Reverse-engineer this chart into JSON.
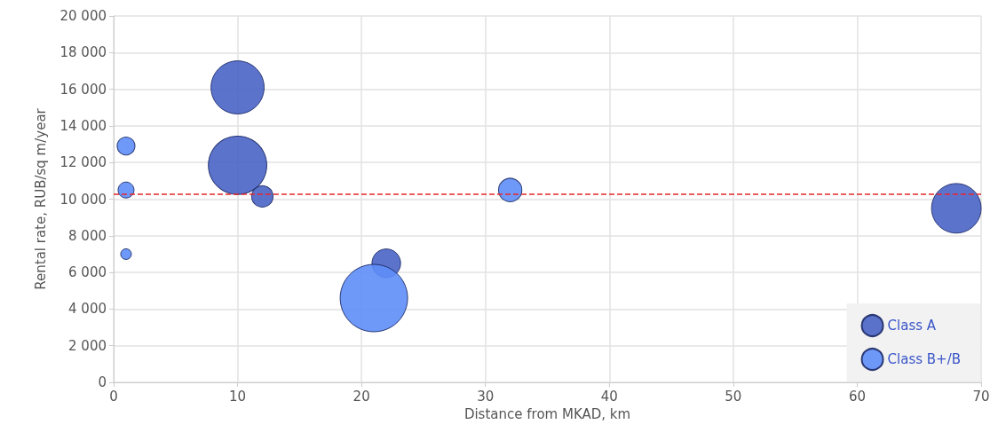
{
  "chart_data": {
    "type": "bubble",
    "xlabel": "Distance from MKAD, km",
    "ylabel": "Rental rate, RUB/sq m/year",
    "series": [
      {
        "name": "Class A",
        "color": "#4a64c6",
        "x": [
          10,
          10,
          12,
          22,
          68
        ],
        "values": [
          16100,
          11850,
          10150,
          6500,
          9500
        ],
        "sizes": [
          0.62,
          0.75,
          0.1,
          0.18,
          0.54
        ]
      },
      {
        "name": "Class B+/B",
        "color": "#5e8ef8",
        "x": [
          1,
          1,
          1,
          21,
          32
        ],
        "values": [
          12900,
          10500,
          7000,
          4600,
          10500
        ],
        "sizes": [
          0.07,
          0.056,
          0.025,
          1,
          0.12
        ]
      }
    ],
    "xlim": [
      0,
      70
    ],
    "xticks": [
      0,
      10,
      20,
      30,
      40,
      50,
      60,
      70
    ],
    "ylim": [
      0,
      20000
    ],
    "yticks": [
      0,
      {
        "value": 2000,
        "label": "2 000"
      },
      {
        "value": 4000,
        "label": "4 000"
      },
      {
        "value": 6000,
        "label": "6 000"
      },
      {
        "value": 8000,
        "label": "8 000"
      },
      {
        "value": 10000,
        "label": "10 000"
      },
      {
        "value": 12000,
        "label": "12 000"
      },
      {
        "value": 14000,
        "label": "14 000"
      },
      {
        "value": 16000,
        "label": "16 000"
      },
      {
        "value": 18000,
        "label": "18 000"
      },
      {
        "value": 20000,
        "label": "20 000"
      }
    ],
    "ref_lines": [
      {
        "axis": "y",
        "value": 10300,
        "color": "#e8262b",
        "line_style": "dashed"
      }
    ],
    "grid": true,
    "legend": "bottom right"
  }
}
